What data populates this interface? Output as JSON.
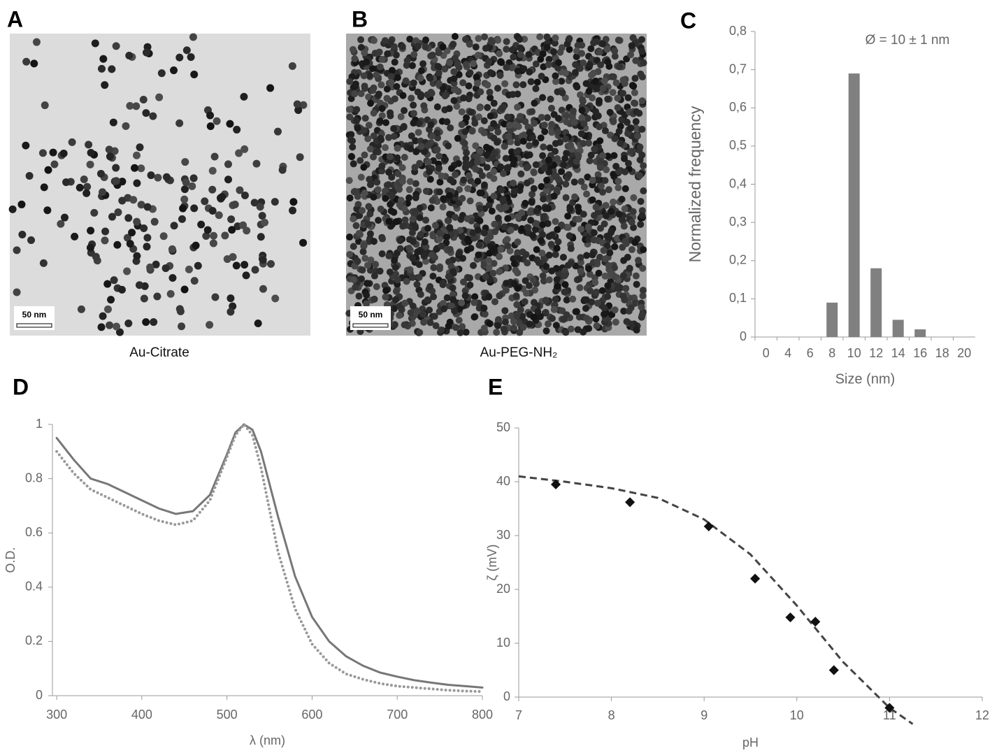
{
  "figure": {
    "panel_labels": [
      "A",
      "B",
      "C",
      "D",
      "E"
    ],
    "images": [
      {
        "caption": "Au-Citrate",
        "scale_bar": "50 nm"
      },
      {
        "caption": "Au-PEG-NH₂",
        "scale_bar": "50 nm"
      }
    ]
  },
  "chart_data": [
    {
      "type": "bar",
      "annotation": "Ø = 10 ± 1 nm",
      "x_label": "Size (nm)",
      "y_label": "Normalized frequency",
      "categories": [
        "0",
        "4",
        "6",
        "8",
        "10",
        "12",
        "14",
        "16",
        "18",
        "20"
      ],
      "values": [
        0,
        0,
        0,
        0.09,
        0.69,
        0.18,
        0.045,
        0.02,
        0,
        0
      ],
      "color": "#808080",
      "ylim": [
        0,
        0.8
      ],
      "yticks": [
        0,
        {
          "value": 0.1,
          "label": "0,1"
        },
        {
          "value": 0.2,
          "label": "0,2"
        },
        {
          "value": 0.3,
          "label": "0,3"
        },
        {
          "value": 0.4,
          "label": "0,4"
        },
        {
          "value": 0.5,
          "label": "0,5"
        },
        {
          "value": 0.6,
          "label": "0,6"
        },
        {
          "value": 0.7,
          "label": "0,7"
        },
        {
          "value": 0.8,
          "label": "0,8"
        }
      ]
    },
    {
      "type": "line",
      "x_label": "λ (nm)",
      "y_label": "O.D.",
      "x": [
        300,
        320,
        340,
        360,
        380,
        400,
        420,
        440,
        460,
        480,
        500,
        510,
        520,
        530,
        540,
        560,
        580,
        600,
        620,
        640,
        660,
        680,
        700,
        720,
        740,
        760,
        780,
        800
      ],
      "series": [
        {
          "color": "#777777",
          "style": "solid",
          "values": [
            0.95,
            0.87,
            0.8,
            0.78,
            0.75,
            0.72,
            0.69,
            0.67,
            0.68,
            0.74,
            0.89,
            0.97,
            1.0,
            0.98,
            0.9,
            0.66,
            0.44,
            0.29,
            0.2,
            0.145,
            0.11,
            0.085,
            0.07,
            0.057,
            0.048,
            0.04,
            0.035,
            0.03
          ]
        },
        {
          "color": "#999999",
          "style": "dotted",
          "values": [
            0.9,
            0.82,
            0.76,
            0.73,
            0.7,
            0.67,
            0.645,
            0.63,
            0.645,
            0.72,
            0.88,
            0.96,
            1.0,
            0.96,
            0.84,
            0.53,
            0.32,
            0.19,
            0.12,
            0.08,
            0.06,
            0.045,
            0.035,
            0.03,
            0.025,
            0.02,
            0.017,
            0.015
          ]
        }
      ],
      "xlim": [
        295,
        800
      ],
      "xticks": [
        300,
        400,
        500,
        600,
        700,
        800
      ],
      "ylim": [
        0,
        1
      ],
      "yticks": [
        0,
        0.2,
        0.4,
        0.6,
        0.8,
        1
      ]
    },
    {
      "type": "scatter",
      "x_label": "pH",
      "y_label": "ζ (mV)",
      "color": "#111111",
      "x": [
        7.4,
        8.2,
        9.05,
        9.55,
        9.93,
        10.2,
        10.4,
        11
      ],
      "values": [
        39.5,
        36.2,
        31.7,
        22,
        14.8,
        14,
        5,
        -2
      ],
      "fit": {
        "color": "#444444",
        "x": [
          7,
          7.5,
          8,
          8.5,
          9,
          9.5,
          10,
          10.5,
          11,
          11.25
        ],
        "values": [
          41,
          40,
          38.8,
          37,
          33,
          26.5,
          17,
          6.5,
          -2,
          -5
        ]
      },
      "xlim": [
        7,
        12
      ],
      "xticks": [
        7,
        8,
        9,
        10,
        11,
        12
      ],
      "ylim": [
        0,
        50
      ],
      "yticks": [
        0,
        10,
        20,
        30,
        40,
        50
      ]
    }
  ]
}
